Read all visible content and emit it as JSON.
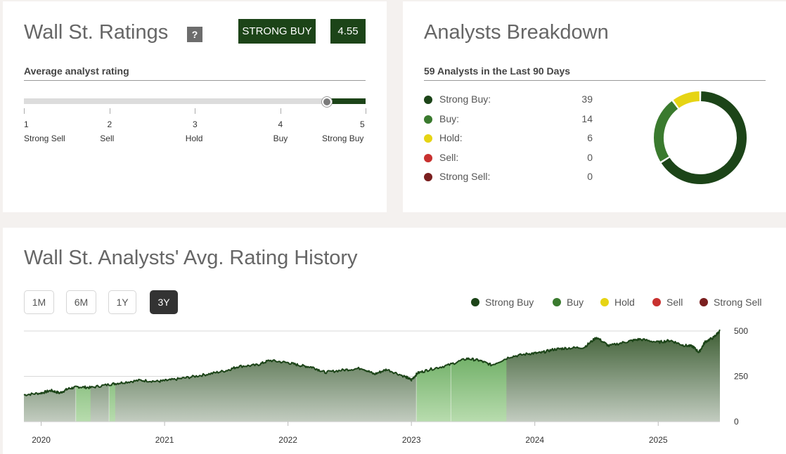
{
  "ratings": {
    "title": "Wall St. Ratings",
    "help_label": "?",
    "rating_label": "STRONG BUY",
    "rating_score": "4.55",
    "score_value": 4.55,
    "subtitle": "Average analyst rating",
    "scale": [
      {
        "num": "1",
        "label": "Strong Sell"
      },
      {
        "num": "2",
        "label": "Sell"
      },
      {
        "num": "3",
        "label": "Hold"
      },
      {
        "num": "4",
        "label": "Buy"
      },
      {
        "num": "5",
        "label": "Strong Buy"
      }
    ],
    "colors": {
      "fill": "#1c4418",
      "track": "#dcdcdc"
    }
  },
  "breakdown": {
    "title": "Analysts Breakdown",
    "subtitle": "59 Analysts in the Last 90 Days",
    "items": [
      {
        "label": "Strong Buy:",
        "count": "39",
        "value": 39,
        "color": "#1c4418"
      },
      {
        "label": "Buy:",
        "count": "14",
        "value": 14,
        "color": "#3a7a2e"
      },
      {
        "label": "Hold:",
        "count": "6",
        "value": 6,
        "color": "#e6d414"
      },
      {
        "label": "Sell:",
        "count": "0",
        "value": 0,
        "color": "#c8312f"
      },
      {
        "label": "Strong Sell:",
        "count": "0",
        "value": 0,
        "color": "#7a1f1f"
      }
    ]
  },
  "history": {
    "title": "Wall St. Analysts' Avg. Rating History",
    "ranges": [
      {
        "label": "1M",
        "active": false
      },
      {
        "label": "6M",
        "active": false
      },
      {
        "label": "1Y",
        "active": false
      },
      {
        "label": "3Y",
        "active": true
      }
    ],
    "legend": [
      {
        "label": "Strong Buy",
        "color": "#1c4418"
      },
      {
        "label": "Buy",
        "color": "#3a7a2e"
      },
      {
        "label": "Hold",
        "color": "#e6d414"
      },
      {
        "label": "Sell",
        "color": "#c8312f"
      },
      {
        "label": "Strong Sell",
        "color": "#7a1f1f"
      }
    ]
  },
  "chart_data": {
    "type": "area",
    "title": "",
    "xlabel": "",
    "ylabel": "",
    "x_ticks": [
      "2020",
      "2021",
      "2022",
      "2023",
      "2024",
      "2025"
    ],
    "y_ticks": [
      "500",
      "250",
      "0"
    ],
    "ylim": [
      0,
      500
    ],
    "xlim": [
      2019.86,
      2025.5
    ],
    "grid": true,
    "series": [
      {
        "name": "",
        "x": [
          2019.86,
          2020.0,
          2020.08,
          2020.15,
          2020.22,
          2020.3,
          2020.4,
          2020.55,
          2020.65,
          2020.8,
          2020.95,
          2021.05,
          2021.2,
          2021.35,
          2021.5,
          2021.6,
          2021.75,
          2021.85,
          2022.0,
          2022.1,
          2022.2,
          2022.3,
          2022.45,
          2022.6,
          2022.7,
          2022.8,
          2022.95,
          2023.0,
          2023.05,
          2023.15,
          2023.3,
          2023.45,
          2023.55,
          2023.65,
          2023.8,
          2023.95,
          2024.05,
          2024.15,
          2024.25,
          2024.4,
          2024.5,
          2024.6,
          2024.75,
          2024.85,
          2025.0,
          2025.1,
          2025.2,
          2025.28,
          2025.33,
          2025.38,
          2025.45,
          2025.5
        ],
        "y": [
          148,
          158,
          172,
          158,
          182,
          192,
          188,
          205,
          215,
          228,
          222,
          230,
          245,
          262,
          282,
          305,
          312,
          338,
          325,
          310,
          300,
          272,
          285,
          295,
          262,
          288,
          248,
          230,
          268,
          288,
          312,
          348,
          338,
          312,
          358,
          375,
          380,
          398,
          405,
          410,
          465,
          418,
          442,
          455,
          438,
          448,
          422,
          415,
          382,
          440,
          465,
          502
        ]
      }
    ],
    "bands": [
      {
        "start": 2020.28,
        "end": 2020.4,
        "category": "Buy"
      },
      {
        "start": 2020.55,
        "end": 2020.6,
        "category": "Buy"
      },
      {
        "start": 2023.04,
        "end": 2023.32,
        "category": "Buy"
      },
      {
        "start": 2023.32,
        "end": 2023.77,
        "category": "Buy"
      }
    ]
  }
}
